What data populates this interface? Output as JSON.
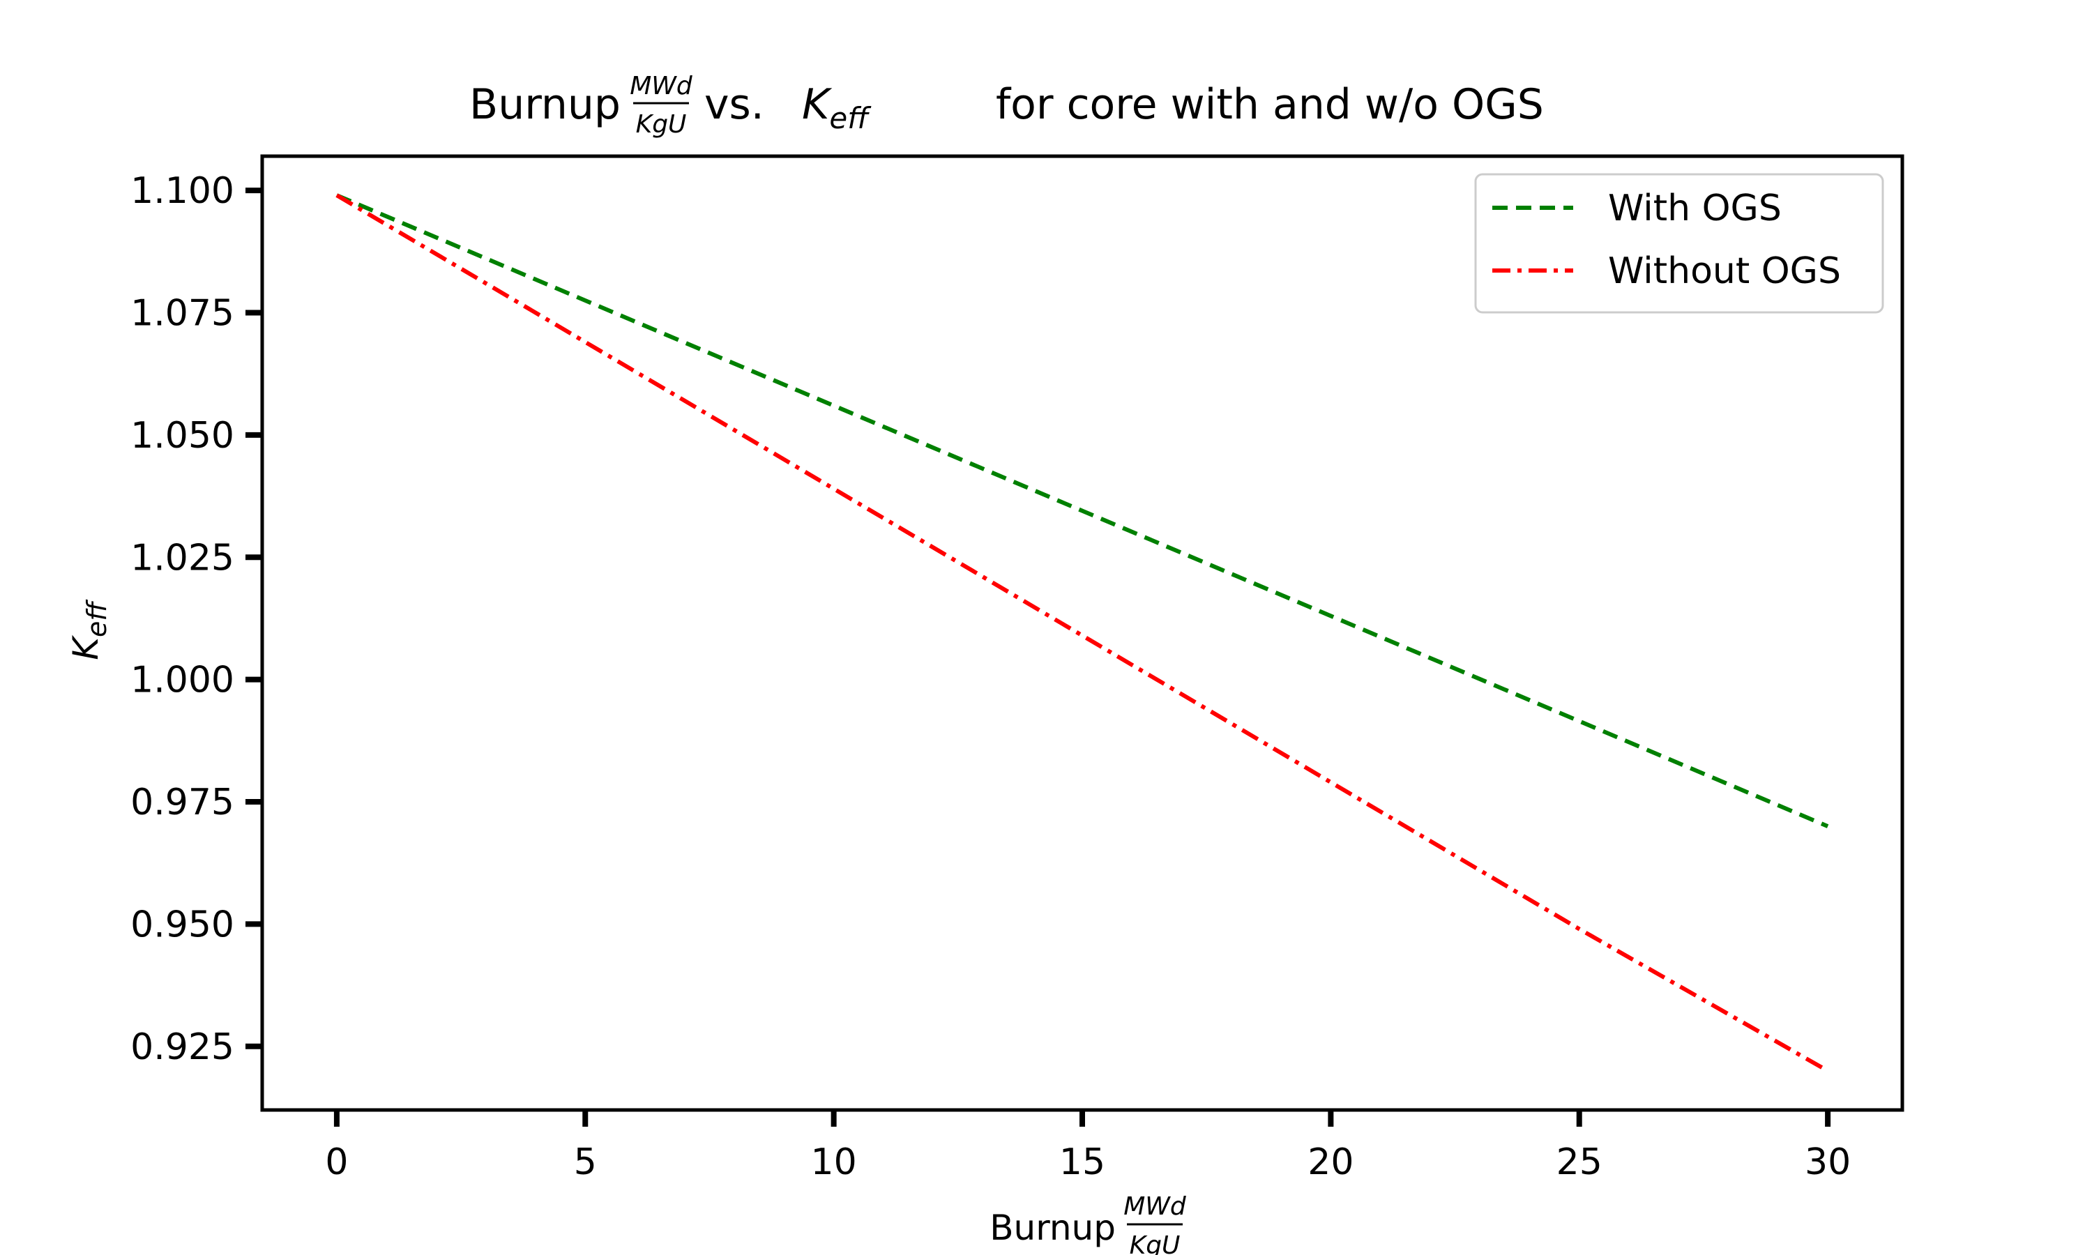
{
  "chart_data": {
    "type": "line",
    "title": {
      "prefix": "Burnup",
      "frac_num": "MWd",
      "frac_den": "KgU",
      "mid": "vs.",
      "k_base": "K",
      "k_sub": "eff",
      "suffix": "for core with and w/o OGS"
    },
    "xlabel": {
      "prefix": "Burnup",
      "frac_num": "MWd",
      "frac_den": "KgU"
    },
    "ylabel": {
      "base": "K",
      "sub": "eff"
    },
    "xlim": [
      -1.5,
      31.5
    ],
    "ylim": [
      0.912,
      1.107
    ],
    "xticks": [
      0,
      5,
      10,
      15,
      20,
      25,
      30
    ],
    "xtick_labels": [
      "0",
      "5",
      "10",
      "15",
      "20",
      "25",
      "30"
    ],
    "yticks": [
      0.925,
      0.95,
      0.975,
      1.0,
      1.025,
      1.05,
      1.075,
      1.1
    ],
    "ytick_labels": [
      "0.925",
      "0.950",
      "0.975",
      "1.000",
      "1.025",
      "1.050",
      "1.075",
      "1.100"
    ],
    "grid": false,
    "legend_position": "top-right",
    "series": [
      {
        "name": "With OGS",
        "color": "#008000",
        "style": "dashed",
        "x": [
          0,
          5,
          10,
          15,
          20,
          25,
          30
        ],
        "y": [
          1.099,
          1.0775,
          1.056,
          1.0345,
          1.013,
          0.9915,
          0.97
        ]
      },
      {
        "name": "Without OGS",
        "color": "#ff0000",
        "style": "dashdot",
        "x": [
          0,
          5,
          10,
          15,
          20,
          25,
          30
        ],
        "y": [
          1.099,
          1.069,
          1.039,
          1.009,
          0.979,
          0.949,
          0.92
        ]
      }
    ]
  }
}
